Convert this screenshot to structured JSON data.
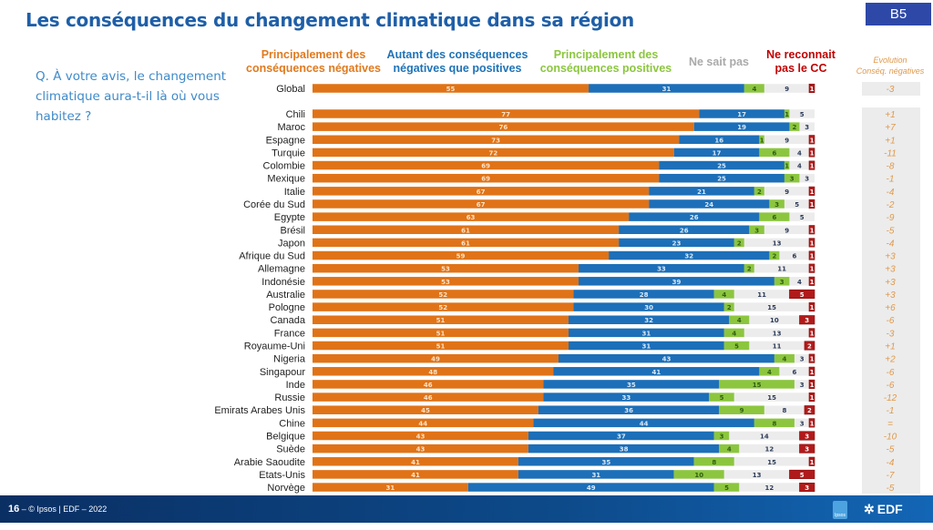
{
  "header": {
    "title": "Les conséquences du changement climatique dans sa région",
    "badge": "B5",
    "question": "Q. À votre avis, le changement climatique aura-t-il là où vous habitez ?"
  },
  "footer": {
    "page": "16",
    "credit": " –  © Ipsos | EDF – 2022",
    "logo_ipsos": "Ipsos",
    "logo_edf": "EDF"
  },
  "colors": {
    "negative": "#e07317",
    "both": "#1c6fb8",
    "positive": "#8cc63f",
    "dont_know": "#ececec",
    "no_cc": "#b11a1a",
    "evolution_text": "#e0994b"
  },
  "chart_data": {
    "type": "bar",
    "orientation": "horizontal",
    "stacked": true,
    "title": "Les conséquences du changement climatique dans sa région",
    "series": [
      {
        "name": "Principalement des conséquences négatives",
        "key": "neg"
      },
      {
        "name": "Autant des conséquences négatives que positives",
        "key": "both"
      },
      {
        "name": "Principalement des conséquences positives",
        "key": "pos"
      },
      {
        "name": "Ne sait pas",
        "key": "ns"
      },
      {
        "name": "Ne reconnait pas le CC",
        "key": "nr"
      }
    ],
    "evolution_header": [
      "Evolution",
      "Conséq. négatives"
    ],
    "global": {
      "label": "Global",
      "neg": 55,
      "both": 31,
      "pos": 4,
      "ns": 9,
      "nr": 1,
      "evo": "-3"
    },
    "rows": [
      {
        "label": "Chili",
        "neg": 77,
        "both": 17,
        "pos": 1,
        "ns": 5,
        "nr": null,
        "evo": "+1"
      },
      {
        "label": "Maroc",
        "neg": 76,
        "both": 19,
        "pos": 2,
        "ns": 3,
        "nr": null,
        "evo": "+7"
      },
      {
        "label": "Espagne",
        "neg": 73,
        "both": 16,
        "pos": 1,
        "ns": 9,
        "nr": 1,
        "evo": "+1"
      },
      {
        "label": "Turquie",
        "neg": 72,
        "both": 17,
        "pos": 6,
        "ns": 4,
        "nr": 1,
        "evo": "-11"
      },
      {
        "label": "Colombie",
        "neg": 69,
        "both": 25,
        "pos": 1,
        "ns": 4,
        "nr": 1,
        "evo": "-8"
      },
      {
        "label": "Mexique",
        "neg": 69,
        "both": 25,
        "pos": 3,
        "ns": 3,
        "nr": null,
        "evo": "-1"
      },
      {
        "label": "Italie",
        "neg": 67,
        "both": 21,
        "pos": 2,
        "ns": 9,
        "nr": 1,
        "evo": "-4"
      },
      {
        "label": "Corée du Sud",
        "neg": 67,
        "both": 24,
        "pos": 3,
        "ns": 5,
        "nr": 1,
        "evo": "-2"
      },
      {
        "label": "Egypte",
        "neg": 63,
        "both": 26,
        "pos": 6,
        "ns": 5,
        "nr": null,
        "evo": "-9"
      },
      {
        "label": "Brésil",
        "neg": 61,
        "both": 26,
        "pos": 3,
        "ns": 9,
        "nr": 1,
        "evo": "-5"
      },
      {
        "label": "Japon",
        "neg": 61,
        "both": 23,
        "pos": 2,
        "ns": 13,
        "nr": 1,
        "evo": "-4"
      },
      {
        "label": "Afrique du Sud",
        "neg": 59,
        "both": 32,
        "pos": 2,
        "ns": 6,
        "nr": 1,
        "evo": "+3"
      },
      {
        "label": "Allemagne",
        "neg": 53,
        "both": 33,
        "pos": 2,
        "ns": 11,
        "nr": 1,
        "evo": "+3"
      },
      {
        "label": "Indonésie",
        "neg": 53,
        "both": 39,
        "pos": 3,
        "ns": 4,
        "nr": 1,
        "evo": "+3"
      },
      {
        "label": "Australie",
        "neg": 52,
        "both": 28,
        "pos": 4,
        "ns": 11,
        "nr": 5,
        "evo": "+3"
      },
      {
        "label": "Pologne",
        "neg": 52,
        "both": 30,
        "pos": 2,
        "ns": 15,
        "nr": 1,
        "evo": "+6"
      },
      {
        "label": "Canada",
        "neg": 51,
        "both": 32,
        "pos": 4,
        "ns": 10,
        "nr": 3,
        "evo": "-6"
      },
      {
        "label": "France",
        "neg": 51,
        "both": 31,
        "pos": 4,
        "ns": 13,
        "nr": 1,
        "evo": "-3"
      },
      {
        "label": "Royaume-Uni",
        "neg": 51,
        "both": 31,
        "pos": 5,
        "ns": 11,
        "nr": 2,
        "evo": "+1"
      },
      {
        "label": "Nigeria",
        "neg": 49,
        "both": 43,
        "pos": 4,
        "ns": 3,
        "nr": 1,
        "evo": "+2"
      },
      {
        "label": "Singapour",
        "neg": 48,
        "both": 41,
        "pos": 4,
        "ns": 6,
        "nr": 1,
        "evo": "-6"
      },
      {
        "label": "Inde",
        "neg": 46,
        "both": 35,
        "pos": 15,
        "ns": 3,
        "nr": 1,
        "evo": "-6"
      },
      {
        "label": "Russie",
        "neg": 46,
        "both": 33,
        "pos": 5,
        "ns": 15,
        "nr": 1,
        "evo": "-12"
      },
      {
        "label": "Emirats Arabes Unis",
        "neg": 45,
        "both": 36,
        "pos": 9,
        "ns": 8,
        "nr": 2,
        "evo": "-1"
      },
      {
        "label": "Chine",
        "neg": 44,
        "both": 44,
        "pos": 8,
        "ns": 3,
        "nr": 1,
        "evo": "="
      },
      {
        "label": "Belgique",
        "neg": 43,
        "both": 37,
        "pos": 3,
        "ns": 14,
        "nr": 3,
        "evo": "-10"
      },
      {
        "label": "Suède",
        "neg": 43,
        "both": 38,
        "pos": 4,
        "ns": 12,
        "nr": 3,
        "evo": "-5"
      },
      {
        "label": "Arabie Saoudite",
        "neg": 41,
        "both": 35,
        "pos": 8,
        "ns": 15,
        "nr": 1,
        "evo": "-4"
      },
      {
        "label": "Etats-Unis",
        "neg": 41,
        "both": 31,
        "pos": 10,
        "ns": 13,
        "nr": 5,
        "evo": "-7"
      },
      {
        "label": "Norvège",
        "neg": 31,
        "both": 49,
        "pos": 5,
        "ns": 12,
        "nr": 3,
        "evo": "-5"
      }
    ],
    "xlim": [
      0,
      100
    ],
    "unit": "%"
  }
}
